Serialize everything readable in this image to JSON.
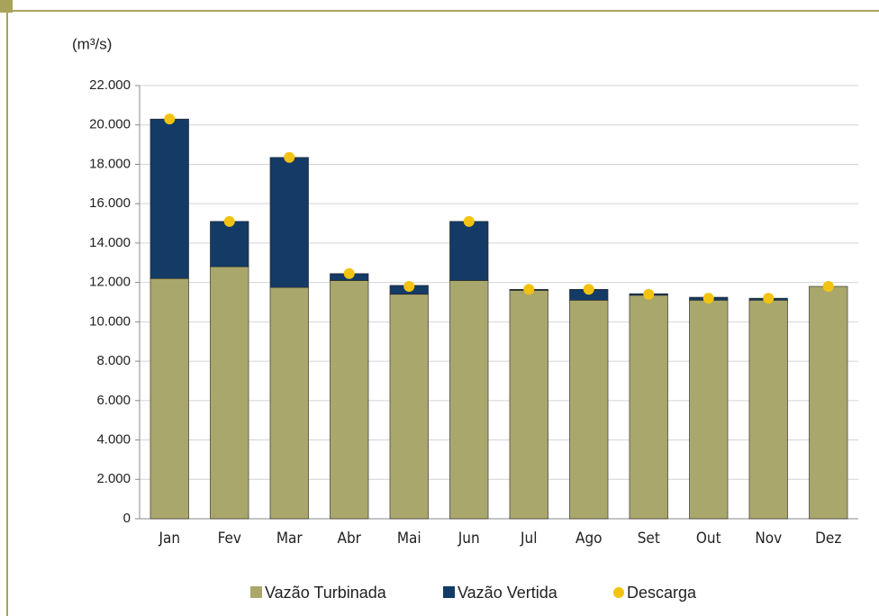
{
  "chart_data": {
    "type": "bar",
    "stacked": true,
    "y_label": "(m³/s)",
    "categories": [
      "Jan",
      "Fev",
      "Mar",
      "Abr",
      "Mai",
      "Jun",
      "Jul",
      "Ago",
      "Set",
      "Out",
      "Nov",
      "Dez"
    ],
    "series": [
      {
        "name": "Vazão Turbinada",
        "color": "#aaa76c",
        "values": [
          12200,
          12800,
          11750,
          12100,
          11400,
          12100,
          11600,
          11100,
          11350,
          11100,
          11100,
          11800
        ]
      },
      {
        "name": "Vazão Vertida",
        "color": "#133b66",
        "values": [
          8100,
          2300,
          6600,
          350,
          450,
          3000,
          50,
          550,
          80,
          150,
          100,
          0
        ]
      },
      {
        "name": "Descarga",
        "color": "#f2c311",
        "type": "scatter",
        "values": [
          20300,
          15100,
          18350,
          12450,
          11800,
          15100,
          11650,
          11650,
          11400,
          11200,
          11200,
          11800
        ]
      }
    ],
    "ylim": [
      0,
      22000
    ],
    "yticks": [
      0,
      {
        "value": 2000,
        "label": "2.000"
      },
      {
        "value": 4000,
        "label": "4.000"
      },
      {
        "value": 6000,
        "label": "6.000"
      },
      {
        "value": 8000,
        "label": "8.000"
      },
      {
        "value": 10000,
        "label": "10.000"
      },
      {
        "value": 12000,
        "label": "12.000"
      },
      {
        "value": 14000,
        "label": "14.000"
      },
      {
        "value": 16000,
        "label": "16.000"
      },
      {
        "value": 18000,
        "label": "18.000"
      },
      {
        "value": 20000,
        "label": "20.000"
      },
      {
        "value": 22000,
        "label": "22.000"
      }
    ],
    "grid": true,
    "legend": "bottom"
  }
}
